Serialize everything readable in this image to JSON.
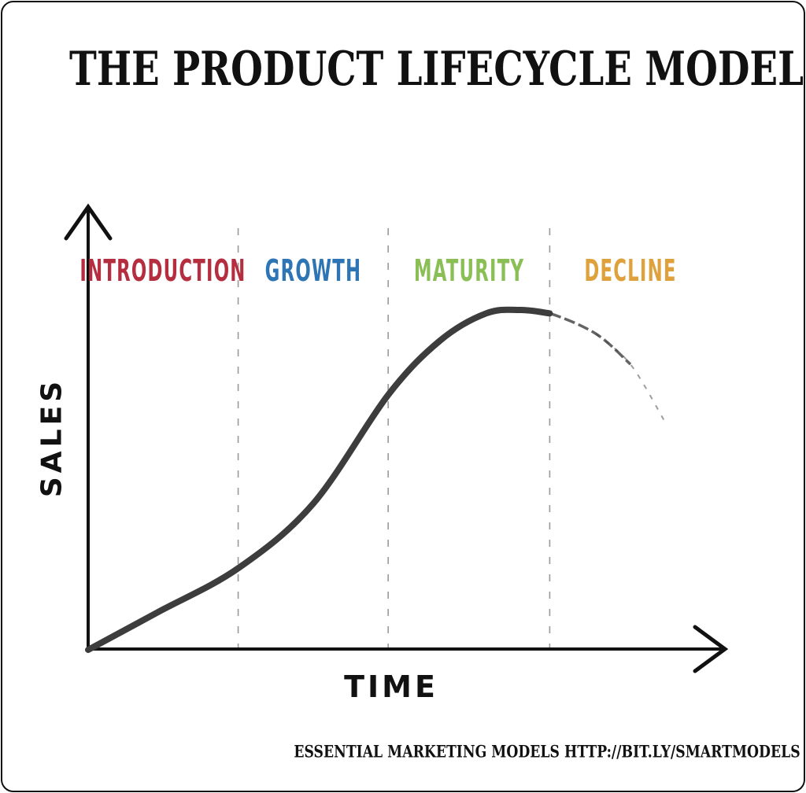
{
  "page": {
    "title": "THE PRODUCT LIFECYCLE MODEL",
    "footer": "ESSENTIAL MARKETING MODELS HTTP://BIT.LY/SMARTMODELS"
  },
  "colors": {
    "curve": "#3d3d3d",
    "axis": "#111111",
    "divider": "#9a9a9a",
    "text": "#111111"
  },
  "chart_data": {
    "type": "line",
    "title": "The Product Lifecycle Model",
    "xlabel": "TIME",
    "ylabel": "SALES",
    "x_range": [
      0,
      108
    ],
    "y_range": [
      0,
      100
    ],
    "grid": false,
    "legend": "none",
    "axes_style": "hand-drawn arrows, no ticks, no numeric labels",
    "phases": [
      {
        "label": "INTRODUCTION",
        "color": "#b52e3f",
        "t_start": 0,
        "t_end": 26
      },
      {
        "label": "GROWTH",
        "color": "#2e75b6",
        "t_start": 26,
        "t_end": 52
      },
      {
        "label": "MATURITY",
        "color": "#8abf56",
        "t_start": 52,
        "t_end": 80
      },
      {
        "label": "DECLINE",
        "color": "#dfa13c",
        "t_start": 80,
        "t_end": 108
      }
    ],
    "series": [
      {
        "name": "Sales",
        "style": "hand-drawn sketch stroke, fades out during decline",
        "points": [
          [
            0,
            0
          ],
          [
            12,
            11
          ],
          [
            26,
            24
          ],
          [
            39,
            43
          ],
          [
            52,
            75
          ],
          [
            61,
            91
          ],
          [
            69,
            99
          ],
          [
            75,
            100
          ],
          [
            80,
            99
          ],
          [
            88,
            93
          ],
          [
            94,
            84
          ],
          [
            100,
            67
          ]
        ],
        "fade_after_t": 80
      }
    ]
  }
}
